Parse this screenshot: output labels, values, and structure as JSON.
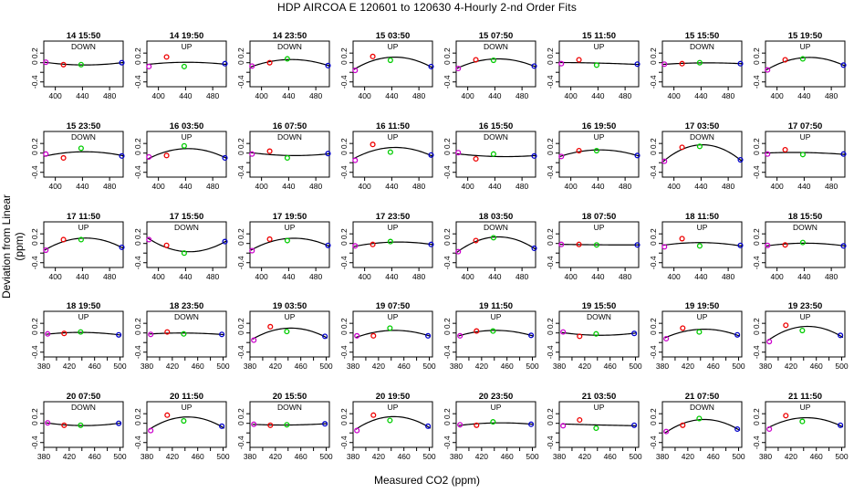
{
  "title": "HDP    AIRCOA E    120601 to 120630    4-Hourly 2-nd Order Fits",
  "xlabel": "Measured CO2 (ppm)",
  "ylabel": "Deviation from Linear (ppm)",
  "colors": {
    "curve": "#000000",
    "standard_low": "#cc00cc",
    "standard_2": "#ee0000",
    "standard_3": "#00cc00",
    "standard_high": "#0000cc"
  },
  "chart_data": {
    "type": "scatter",
    "layout": "5x8 small multiples",
    "ylim": [
      -0.5,
      0.45
    ],
    "yticks": [
      -0.4,
      -0.2,
      0.0,
      0.2
    ],
    "ytick_labels": [
      "-0.4",
      "",
      "0",
      "0.2"
    ],
    "xticks_rows_1_3": [
      400,
      440,
      480
    ],
    "xtick_labels_rows_1_3": [
      "400",
      "440",
      "480"
    ],
    "xticks_rows_4_5": [
      380,
      400,
      420,
      440,
      460,
      480,
      500
    ],
    "xtick_labels_rows_4_5": [
      "380",
      "420",
      "460",
      "500"
    ],
    "xlim_rows_1_3": [
      383,
      500
    ],
    "xlim_rows_4_5": [
      380,
      505
    ],
    "standards_x": [
      386,
      412,
      438,
      498
    ],
    "panels": [
      {
        "time": "14 15:50",
        "dir": "DOWN",
        "y": [
          0.01,
          -0.04,
          -0.04,
          0.0
        ]
      },
      {
        "time": "14 19:50",
        "dir": "UP",
        "y": [
          -0.08,
          0.12,
          -0.08,
          -0.02
        ]
      },
      {
        "time": "14 23:50",
        "dir": "DOWN",
        "y": [
          -0.07,
          0.0,
          0.08,
          -0.06
        ]
      },
      {
        "time": "15 03:50",
        "dir": "UP",
        "y": [
          -0.16,
          0.13,
          0.05,
          -0.08
        ]
      },
      {
        "time": "15 07:50",
        "dir": "DOWN",
        "y": [
          -0.12,
          0.06,
          0.05,
          -0.07
        ]
      },
      {
        "time": "15 11:50",
        "dir": "UP",
        "y": [
          -0.02,
          0.06,
          -0.05,
          -0.03
        ]
      },
      {
        "time": "15 15:50",
        "dir": "DOWN",
        "y": [
          -0.03,
          -0.02,
          0.0,
          -0.02
        ]
      },
      {
        "time": "15 19:50",
        "dir": "UP",
        "y": [
          -0.15,
          0.06,
          0.08,
          -0.05
        ]
      },
      {
        "time": "15 23:50",
        "dir": "DOWN",
        "y": [
          -0.02,
          -0.1,
          0.1,
          -0.06
        ]
      },
      {
        "time": "16 03:50",
        "dir": "UP",
        "y": [
          -0.08,
          -0.05,
          0.15,
          -0.1
        ]
      },
      {
        "time": "16 07:50",
        "dir": "DOWN",
        "y": [
          -0.02,
          0.04,
          -0.1,
          -0.01
        ]
      },
      {
        "time": "16 11:50",
        "dir": "UP",
        "y": [
          -0.15,
          0.18,
          0.02,
          -0.04
        ]
      },
      {
        "time": "16 15:50",
        "dir": "DOWN",
        "y": [
          0.01,
          -0.12,
          -0.02,
          -0.06
        ]
      },
      {
        "time": "16 19:50",
        "dir": "UP",
        "y": [
          -0.07,
          0.05,
          0.05,
          -0.05
        ]
      },
      {
        "time": "17 03:50",
        "dir": "DOWN",
        "y": [
          -0.17,
          0.12,
          0.14,
          -0.14
        ]
      },
      {
        "time": "17 07:50",
        "dir": "UP",
        "y": [
          -0.02,
          0.07,
          -0.03,
          -0.02
        ]
      },
      {
        "time": "17 11:50",
        "dir": "UP",
        "y": [
          -0.14,
          0.08,
          0.08,
          -0.08
        ]
      },
      {
        "time": "17 15:50",
        "dir": "DOWN",
        "y": [
          0.08,
          -0.04,
          -0.2,
          0.04
        ]
      },
      {
        "time": "17 19:50",
        "dir": "UP",
        "y": [
          -0.15,
          0.09,
          0.06,
          -0.04
        ]
      },
      {
        "time": "17 23:50",
        "dir": "UP",
        "y": [
          -0.05,
          -0.02,
          0.04,
          -0.02
        ]
      },
      {
        "time": "18 03:50",
        "dir": "DOWN",
        "y": [
          -0.17,
          0.06,
          0.12,
          -0.1
        ]
      },
      {
        "time": "18 07:50",
        "dir": "UP",
        "y": [
          -0.02,
          -0.02,
          -0.03,
          -0.03
        ]
      },
      {
        "time": "18 11:50",
        "dir": "UP",
        "y": [
          -0.07,
          0.1,
          -0.05,
          -0.04
        ]
      },
      {
        "time": "18 15:50",
        "dir": "DOWN",
        "y": [
          -0.04,
          -0.03,
          0.02,
          -0.05
        ]
      },
      {
        "time": "18 19:50",
        "dir": "UP",
        "y": [
          -0.02,
          -0.01,
          0.02,
          -0.04
        ]
      },
      {
        "time": "18 23:50",
        "dir": "DOWN",
        "y": [
          -0.03,
          0.02,
          -0.02,
          -0.03
        ]
      },
      {
        "time": "19 03:50",
        "dir": "UP",
        "y": [
          -0.15,
          0.13,
          0.03,
          -0.07
        ]
      },
      {
        "time": "19 07:50",
        "dir": "UP",
        "y": [
          -0.06,
          -0.06,
          0.1,
          -0.06
        ]
      },
      {
        "time": "19 11:50",
        "dir": "UP",
        "y": [
          -0.06,
          0.04,
          0.04,
          -0.05
        ]
      },
      {
        "time": "19 15:50",
        "dir": "DOWN",
        "y": [
          0.02,
          -0.07,
          -0.02,
          -0.01
        ]
      },
      {
        "time": "19 19:50",
        "dir": "UP",
        "y": [
          -0.12,
          0.1,
          0.02,
          -0.04
        ]
      },
      {
        "time": "19 23:50",
        "dir": "UP",
        "y": [
          -0.18,
          0.16,
          0.05,
          -0.05
        ]
      },
      {
        "time": "20 07:50",
        "dir": "DOWN",
        "y": [
          0.01,
          -0.04,
          -0.04,
          0.0
        ]
      },
      {
        "time": "20 11:50",
        "dir": "UP",
        "y": [
          -0.15,
          0.17,
          0.05,
          -0.06
        ]
      },
      {
        "time": "20 15:50",
        "dir": "DOWN",
        "y": [
          -0.02,
          -0.04,
          -0.03,
          -0.01
        ]
      },
      {
        "time": "20 19:50",
        "dir": "UP",
        "y": [
          -0.15,
          0.17,
          0.06,
          -0.06
        ]
      },
      {
        "time": "20 23:50",
        "dir": "UP",
        "y": [
          -0.03,
          -0.04,
          0.03,
          -0.02
        ]
      },
      {
        "time": "21 03:50",
        "dir": "UP",
        "y": [
          -0.05,
          0.07,
          -0.1,
          -0.04
        ]
      },
      {
        "time": "21 07:50",
        "dir": "DOWN",
        "y": [
          -0.17,
          -0.04,
          0.1,
          -0.12
        ]
      },
      {
        "time": "21 11:50",
        "dir": "UP",
        "y": [
          -0.12,
          0.16,
          0.04,
          -0.04
        ]
      }
    ]
  }
}
